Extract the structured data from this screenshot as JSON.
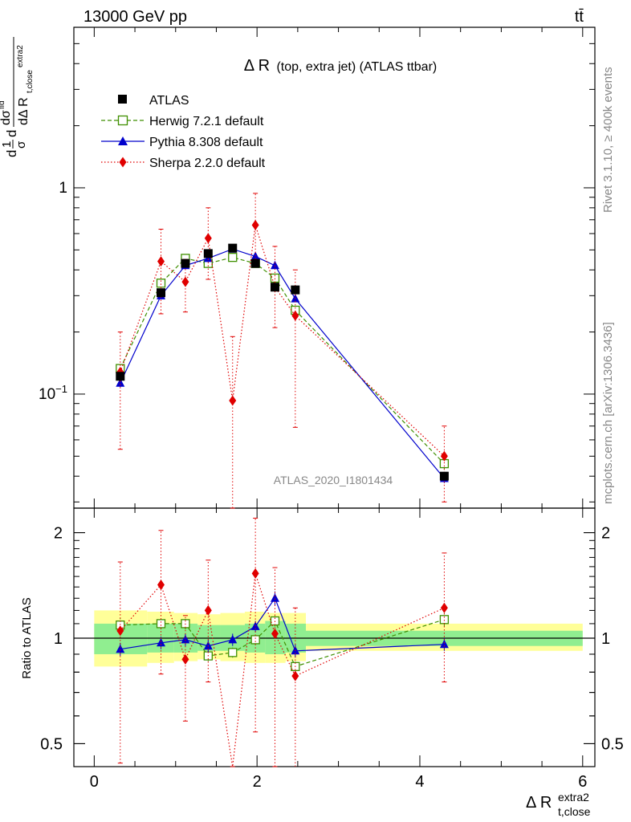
{
  "header": {
    "energy": "13000 GeV pp",
    "process": "tt̄"
  },
  "side_labels": {
    "rivet": "Rivet 3.1.10, ≥ 400k events",
    "mcplots": "mcplots.cern.ch [arXiv:1306.3436]"
  },
  "analysis_id": "ATLAS_2020_I1801434",
  "chart_data": [
    {
      "type": "line",
      "yscale": "log",
      "title": "Δ R (top, extra jet) (ATLAS ttbar)",
      "title_main": "Δ R",
      "title_sub": "(top, extra jet) (ATLAS ttbar)",
      "ylabel": "dσ/dΔ R / σ",
      "ylim": [
        0.028,
        6.0
      ],
      "xlim": [
        -0.25,
        6.15
      ],
      "yticks": [
        {
          "v": 0.1,
          "label": "10−1"
        },
        {
          "v": 1,
          "label": "1"
        }
      ],
      "x": [
        0.32,
        0.82,
        1.12,
        1.4,
        1.7,
        1.98,
        2.22,
        2.47,
        4.3
      ],
      "series": [
        {
          "name": "ATLAS",
          "color": "#000000",
          "marker": "square",
          "values": [
            0.122,
            0.31,
            0.43,
            0.48,
            0.51,
            0.43,
            0.33,
            0.32,
            0.04
          ]
        },
        {
          "name": "Herwig 7.2.1 default",
          "color": "#3f8f00",
          "marker": "open-square",
          "dash": "dashed",
          "values": [
            0.133,
            0.345,
            0.455,
            0.43,
            0.46,
            0.43,
            0.365,
            0.255,
            0.046
          ],
          "err_lo": [
            0.127,
            0.336,
            0.446,
            0.42,
            0.45,
            0.42,
            0.355,
            0.246,
            0.043
          ],
          "err_hi": [
            0.139,
            0.354,
            0.464,
            0.44,
            0.47,
            0.44,
            0.375,
            0.264,
            0.049
          ]
        },
        {
          "name": "Pythia 8.308 default",
          "color": "#0000cc",
          "marker": "triangle",
          "dash": "solid",
          "values": [
            0.113,
            0.3,
            0.42,
            0.455,
            0.505,
            0.465,
            0.42,
            0.29,
            0.039
          ],
          "err_lo": [
            0.108,
            0.29,
            0.41,
            0.445,
            0.495,
            0.455,
            0.41,
            0.28,
            0.037
          ],
          "err_hi": [
            0.118,
            0.31,
            0.43,
            0.465,
            0.515,
            0.475,
            0.43,
            0.3,
            0.041
          ]
        },
        {
          "name": "Sherpa 2.2.0 default",
          "color": "#e00000",
          "marker": "diamond",
          "dash": "dotted",
          "values": [
            0.128,
            0.44,
            0.35,
            0.57,
            0.093,
            0.66,
            0.33,
            0.24,
            0.05
          ],
          "err_lo": [
            0.054,
            0.245,
            0.25,
            0.36,
            0.02,
            0.45,
            0.21,
            0.069,
            0.03
          ],
          "err_hi": [
            0.2,
            0.63,
            0.45,
            0.8,
            0.19,
            0.94,
            0.52,
            0.4,
            0.07
          ]
        }
      ],
      "legend_position": "top-left"
    },
    {
      "type": "line",
      "ylabel": "Ratio to ATLAS",
      "xlabel": "Δ R",
      "xlabel_sup": "extra2",
      "xlabel_sub": "t,close",
      "ylim": [
        0.43,
        2.35
      ],
      "yticks": [
        {
          "v": 0.5,
          "label": "0.5"
        },
        {
          "v": 1,
          "label": "1"
        },
        {
          "v": 2,
          "label": "2"
        }
      ],
      "xticks": [
        {
          "v": 0,
          "label": "0"
        },
        {
          "v": 2,
          "label": "2"
        },
        {
          "v": 4,
          "label": "4"
        },
        {
          "v": 6,
          "label": "6"
        }
      ],
      "bands": [
        {
          "x0": 0.0,
          "x1": 0.65,
          "stat": [
            0.9,
            1.1
          ],
          "tot": [
            0.83,
            1.2
          ]
        },
        {
          "x0": 0.65,
          "x1": 0.98,
          "stat": [
            0.91,
            1.1
          ],
          "tot": [
            0.85,
            1.19
          ]
        },
        {
          "x0": 0.98,
          "x1": 1.27,
          "stat": [
            0.91,
            1.1
          ],
          "tot": [
            0.86,
            1.18
          ]
        },
        {
          "x0": 1.27,
          "x1": 1.55,
          "stat": [
            0.92,
            1.09
          ],
          "tot": [
            0.87,
            1.17
          ]
        },
        {
          "x0": 1.55,
          "x1": 1.85,
          "stat": [
            0.92,
            1.09
          ],
          "tot": [
            0.86,
            1.18
          ]
        },
        {
          "x0": 1.85,
          "x1": 2.1,
          "stat": [
            0.91,
            1.1
          ],
          "tot": [
            0.85,
            1.19
          ]
        },
        {
          "x0": 2.1,
          "x1": 2.35,
          "stat": [
            0.9,
            1.12
          ],
          "tot": [
            0.85,
            1.18
          ]
        },
        {
          "x0": 2.35,
          "x1": 2.6,
          "stat": [
            0.91,
            1.1
          ],
          "tot": [
            0.86,
            1.18
          ]
        },
        {
          "x0": 2.6,
          "x1": 6.0,
          "stat": [
            0.95,
            1.05
          ],
          "tot": [
            0.92,
            1.1
          ]
        }
      ],
      "series": [
        {
          "name": "Herwig 7.2.1 default",
          "color": "#3f8f00",
          "marker": "open-square",
          "dash": "dashed",
          "values": [
            1.09,
            1.1,
            1.1,
            0.89,
            0.91,
            0.99,
            1.12,
            0.83,
            1.13
          ],
          "err_lo": [
            1.04,
            1.06,
            1.06,
            0.86,
            0.88,
            0.96,
            1.08,
            0.8,
            1.08
          ],
          "err_hi": [
            1.14,
            1.14,
            1.14,
            0.92,
            0.94,
            1.02,
            1.16,
            0.86,
            1.18
          ]
        },
        {
          "name": "Pythia 8.308 default",
          "color": "#0000cc",
          "marker": "triangle",
          "dash": "solid",
          "values": [
            0.93,
            0.97,
            0.99,
            0.95,
            0.99,
            1.08,
            1.3,
            0.92,
            0.96
          ],
          "err_lo": [
            0.89,
            0.93,
            0.95,
            0.91,
            0.95,
            1.04,
            1.24,
            0.88,
            0.92
          ],
          "err_hi": [
            0.97,
            1.01,
            1.03,
            0.99,
            1.03,
            1.12,
            1.36,
            0.96,
            1.0
          ]
        },
        {
          "name": "Sherpa 2.2.0 default",
          "color": "#e00000",
          "marker": "diamond",
          "dash": "dotted",
          "values": [
            1.05,
            1.42,
            0.87,
            1.2,
            0.182,
            1.53,
            1.03,
            0.78,
            1.22
          ],
          "err_lo": [
            0.44,
            0.79,
            0.58,
            0.75,
            0.04,
            0.54,
            0.43,
            0.35,
            0.75
          ],
          "err_hi": [
            1.65,
            2.03,
            1.16,
            1.67,
            0.37,
            2.2,
            1.59,
            1.22,
            1.75
          ]
        }
      ]
    }
  ]
}
